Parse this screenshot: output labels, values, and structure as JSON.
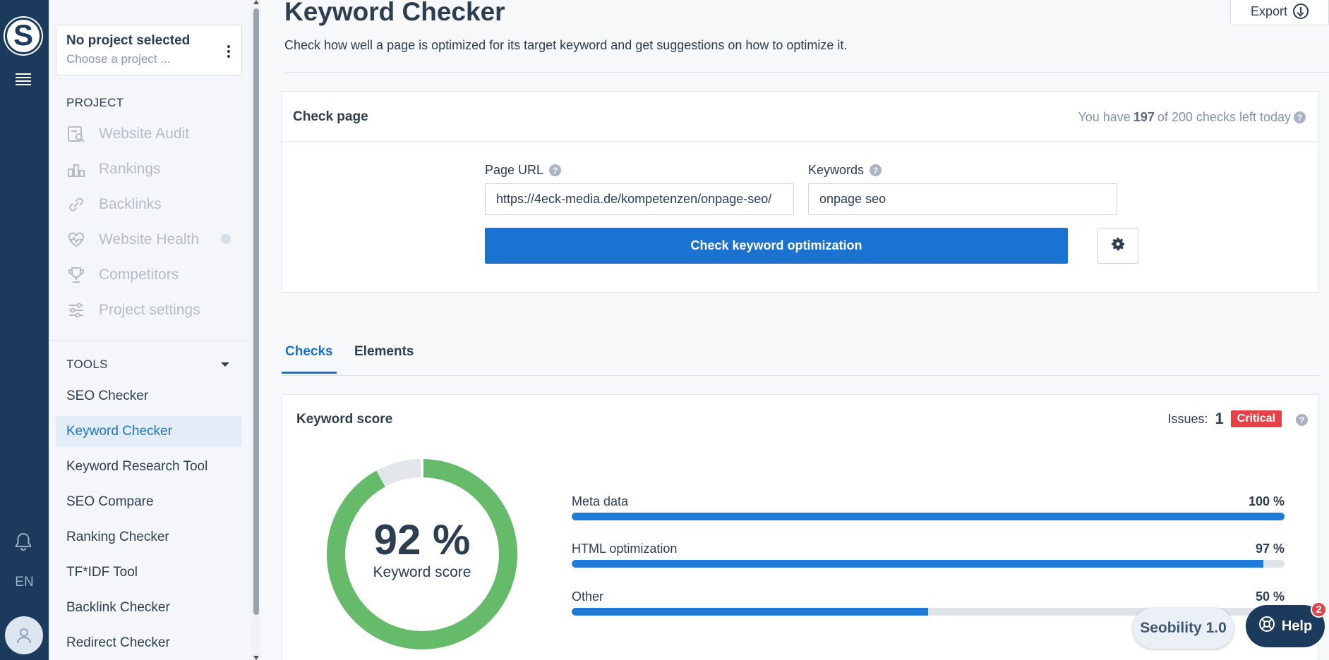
{
  "rail": {
    "logo_letter": "S",
    "language": "EN"
  },
  "sidebar": {
    "project_title": "No project selected",
    "project_sub": "Choose a project ...",
    "project_section": "PROJECT",
    "project_items": [
      {
        "label": "Website Audit",
        "icon": "audit-icon"
      },
      {
        "label": "Rankings",
        "icon": "rankings-icon"
      },
      {
        "label": "Backlinks",
        "icon": "backlinks-icon"
      },
      {
        "label": "Website Health",
        "icon": "heart-pulse-icon"
      },
      {
        "label": "Competitors",
        "icon": "trophy-icon"
      },
      {
        "label": "Project settings",
        "icon": "sliders-icon"
      }
    ],
    "tools_section": "TOOLS",
    "tools": [
      {
        "label": "SEO Checker"
      },
      {
        "label": "Keyword Checker",
        "active": true
      },
      {
        "label": "Keyword Research Tool"
      },
      {
        "label": "SEO Compare"
      },
      {
        "label": "Ranking Checker"
      },
      {
        "label": "TF*IDF Tool"
      },
      {
        "label": "Backlink Checker"
      },
      {
        "label": "Redirect Checker"
      }
    ]
  },
  "header": {
    "title": "Keyword Checker",
    "description": "Check how well a page is optimized for its target keyword and get suggestions on how to optimize it.",
    "export_label": "Export"
  },
  "check_page": {
    "title": "Check page",
    "quota_prefix": "You have",
    "quota_used": "197",
    "quota_suffix": "of 200 checks left today",
    "url_label": "Page URL",
    "url_value": "https://4eck-media.de/kompetenzen/onpage-seo/",
    "keywords_label": "Keywords",
    "keywords_value": "onpage seo",
    "button_label": "Check keyword optimization"
  },
  "tabs": [
    {
      "label": "Checks",
      "active": true
    },
    {
      "label": "Elements",
      "active": false
    }
  ],
  "keyword_score": {
    "title": "Keyword score",
    "issues_label": "Issues:",
    "issues_count": "1",
    "severity": "Critical",
    "score_percent": 92,
    "score_text": "92 %",
    "score_caption": "Keyword score",
    "rows": [
      {
        "label": "Meta data",
        "percent": 100,
        "text": "100 %"
      },
      {
        "label": "HTML optimization",
        "percent": 97,
        "text": "97 %"
      },
      {
        "label": "Other",
        "percent": 50,
        "text": "50 %"
      }
    ]
  },
  "floating": {
    "version": "Seobility 1.0",
    "help_label": "Help",
    "help_badge": "2"
  },
  "colors": {
    "navy": "#1b3a5c",
    "primary": "#1a73d0",
    "score_green": "#66bb6a",
    "critical": "#e34248"
  }
}
